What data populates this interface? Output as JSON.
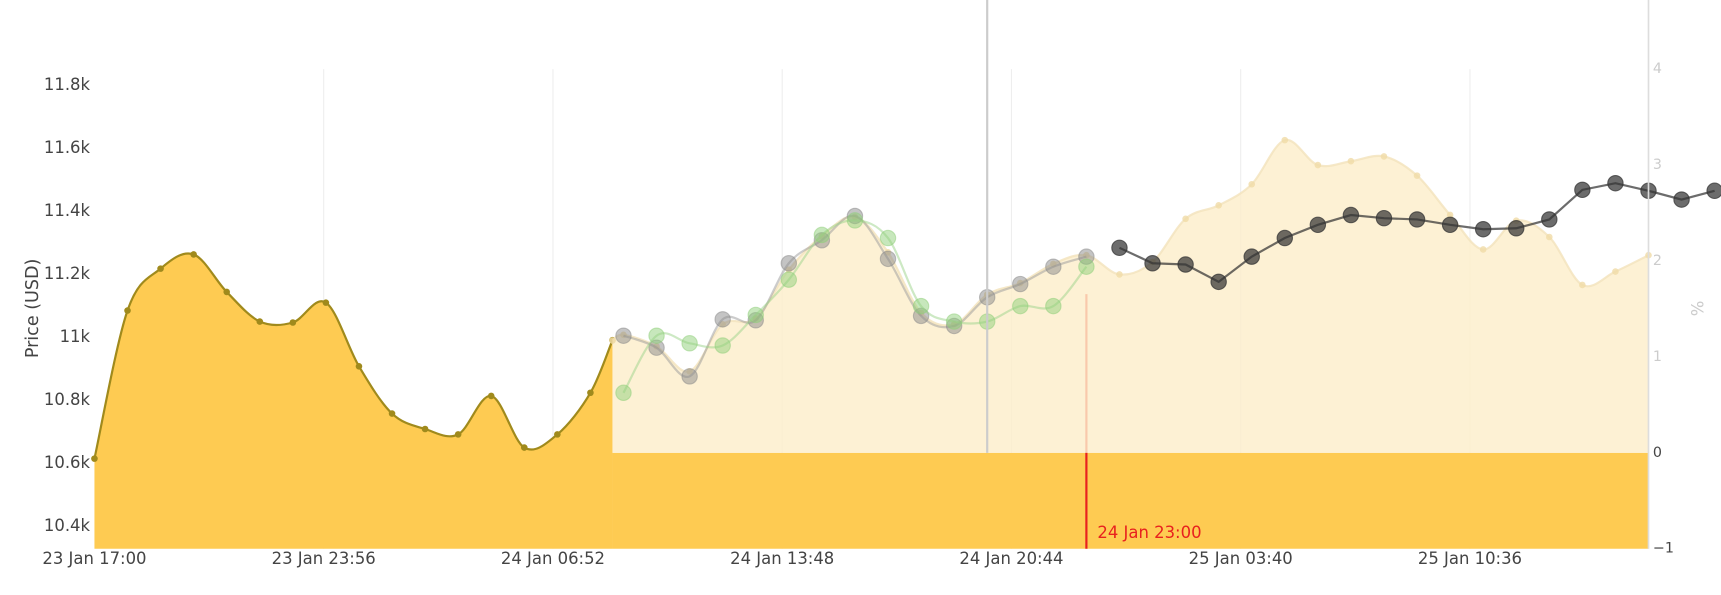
{
  "chart_data": {
    "type": "line",
    "y_label": "Price (USD)",
    "y2_label": "%",
    "xlim": [
      0,
      2820
    ],
    "xticks": [
      {
        "value": 0,
        "label": "23 Jan 17:00"
      },
      {
        "value": 416,
        "label": "23 Jan 23:56"
      },
      {
        "value": 832,
        "label": "24 Jan 06:52"
      },
      {
        "value": 1248,
        "label": "24 Jan 13:48"
      },
      {
        "value": 1664,
        "label": "24 Jan 20:44"
      },
      {
        "value": 2080,
        "label": "25 Jan 03:40"
      },
      {
        "value": 2496,
        "label": "25 Jan 10:36"
      }
    ],
    "ylim": [
      10330,
      11852
    ],
    "yticks": [
      {
        "value": 10400,
        "label": "10.4k"
      },
      {
        "value": 10600,
        "label": "10.6k"
      },
      {
        "value": 10800,
        "label": "10.8k"
      },
      {
        "value": 11000,
        "label": "11k"
      },
      {
        "value": 11200,
        "label": "11.2k"
      },
      {
        "value": 11400,
        "label": "11.4k"
      },
      {
        "value": 11600,
        "label": "11.6k"
      },
      {
        "value": 11800,
        "label": "11.8k"
      }
    ],
    "y2lim": [
      -1,
      4
    ],
    "y2ticks": [
      {
        "value": -1,
        "label": "−1"
      },
      0,
      1,
      2,
      3,
      4
    ],
    "grid": true,
    "cursor_x": 1620,
    "marker": {
      "x": 1800,
      "label": "24 Jan 23:00",
      "color": "#e8211e"
    },
    "series": [
      {
        "color": "#a08a1c",
        "fill": "tobottom",
        "fill_color": "#fecb52",
        "smooth": true,
        "marker_size": 3,
        "marker_color": "#a08a1c",
        "opacity": 1,
        "x": [
          0,
          60,
          120,
          180,
          240,
          300,
          360,
          420,
          480,
          540,
          600,
          660,
          720,
          780,
          840,
          900,
          940
        ],
        "values": [
          10616,
          11086,
          11219,
          11264,
          11145,
          11051,
          11048,
          11111,
          10909,
          10759,
          10710,
          10693,
          10815,
          10651,
          10693,
          10825,
          10992
        ]
      },
      {
        "axis": "y2",
        "color": "#f3e3bd",
        "fill": "tozero",
        "fill_color": "#fdeecb",
        "smooth": true,
        "marker_size": 3,
        "marker_color": "#f0dca8",
        "opacity": 0.82,
        "x": [
          940,
          960,
          1020,
          1080,
          1140,
          1200,
          1260,
          1320,
          1380,
          1440,
          1500,
          1560,
          1620,
          1680,
          1740,
          1800,
          1860,
          1920,
          1980,
          2040,
          2100,
          2160,
          2220,
          2280,
          2340,
          2400,
          2460,
          2520,
          2580,
          2640,
          2700,
          2760,
          2820
        ],
        "values": [
          1.17,
          1.23,
          1.11,
          0.85,
          1.34,
          1.4,
          1.91,
          2.26,
          2.46,
          2.09,
          1.46,
          1.34,
          1.65,
          1.77,
          1.97,
          2.06,
          1.86,
          1.99,
          2.44,
          2.58,
          2.8,
          3.26,
          3.0,
          3.04,
          3.09,
          2.89,
          2.48,
          2.12,
          2.42,
          2.25,
          1.75,
          1.89,
          2.06
        ]
      },
      {
        "color": "#9a9a9a",
        "smooth": true,
        "marker_size": 7,
        "marker_color": "#8a8a8a",
        "opacity": 0.5,
        "x": [
          960,
          1020,
          1080,
          1140,
          1200,
          1260,
          1320,
          1380,
          1440,
          1500,
          1560,
          1620,
          1680,
          1740,
          1800
        ],
        "values": [
          11006,
          10968,
          10877,
          11058,
          11055,
          11236,
          11309,
          11386,
          11250,
          11069,
          11037,
          11128,
          11170,
          11225,
          11257
        ]
      },
      {
        "color": "#9bd38a",
        "smooth": true,
        "marker_size": 7,
        "marker_color": "#8fd07a",
        "opacity": 0.5,
        "x": [
          960,
          1020,
          1080,
          1140,
          1200,
          1260,
          1320,
          1380,
          1440,
          1500,
          1560,
          1620,
          1680,
          1740,
          1800
        ],
        "values": [
          10825,
          11006,
          10982,
          10975,
          11072,
          11184,
          11326,
          11372,
          11316,
          11100,
          11051,
          11051,
          11100,
          11100,
          11225
        ]
      },
      {
        "color": "#333333",
        "smooth": false,
        "marker_size": 7,
        "marker_color": "#333333",
        "opacity": 0.72,
        "x": [
          1860,
          1920,
          1980,
          2040,
          2100,
          2160,
          2220,
          2280,
          2340,
          2400,
          2460,
          2520,
          2580,
          2640,
          2700,
          2760,
          2820,
          2880,
          2940
        ],
        "values": [
          11285,
          11236,
          11232,
          11177,
          11257,
          11316,
          11358,
          11389,
          11379,
          11375,
          11358,
          11344,
          11347,
          11375,
          11469,
          11490,
          11466,
          11438,
          11466
        ]
      }
    ]
  }
}
